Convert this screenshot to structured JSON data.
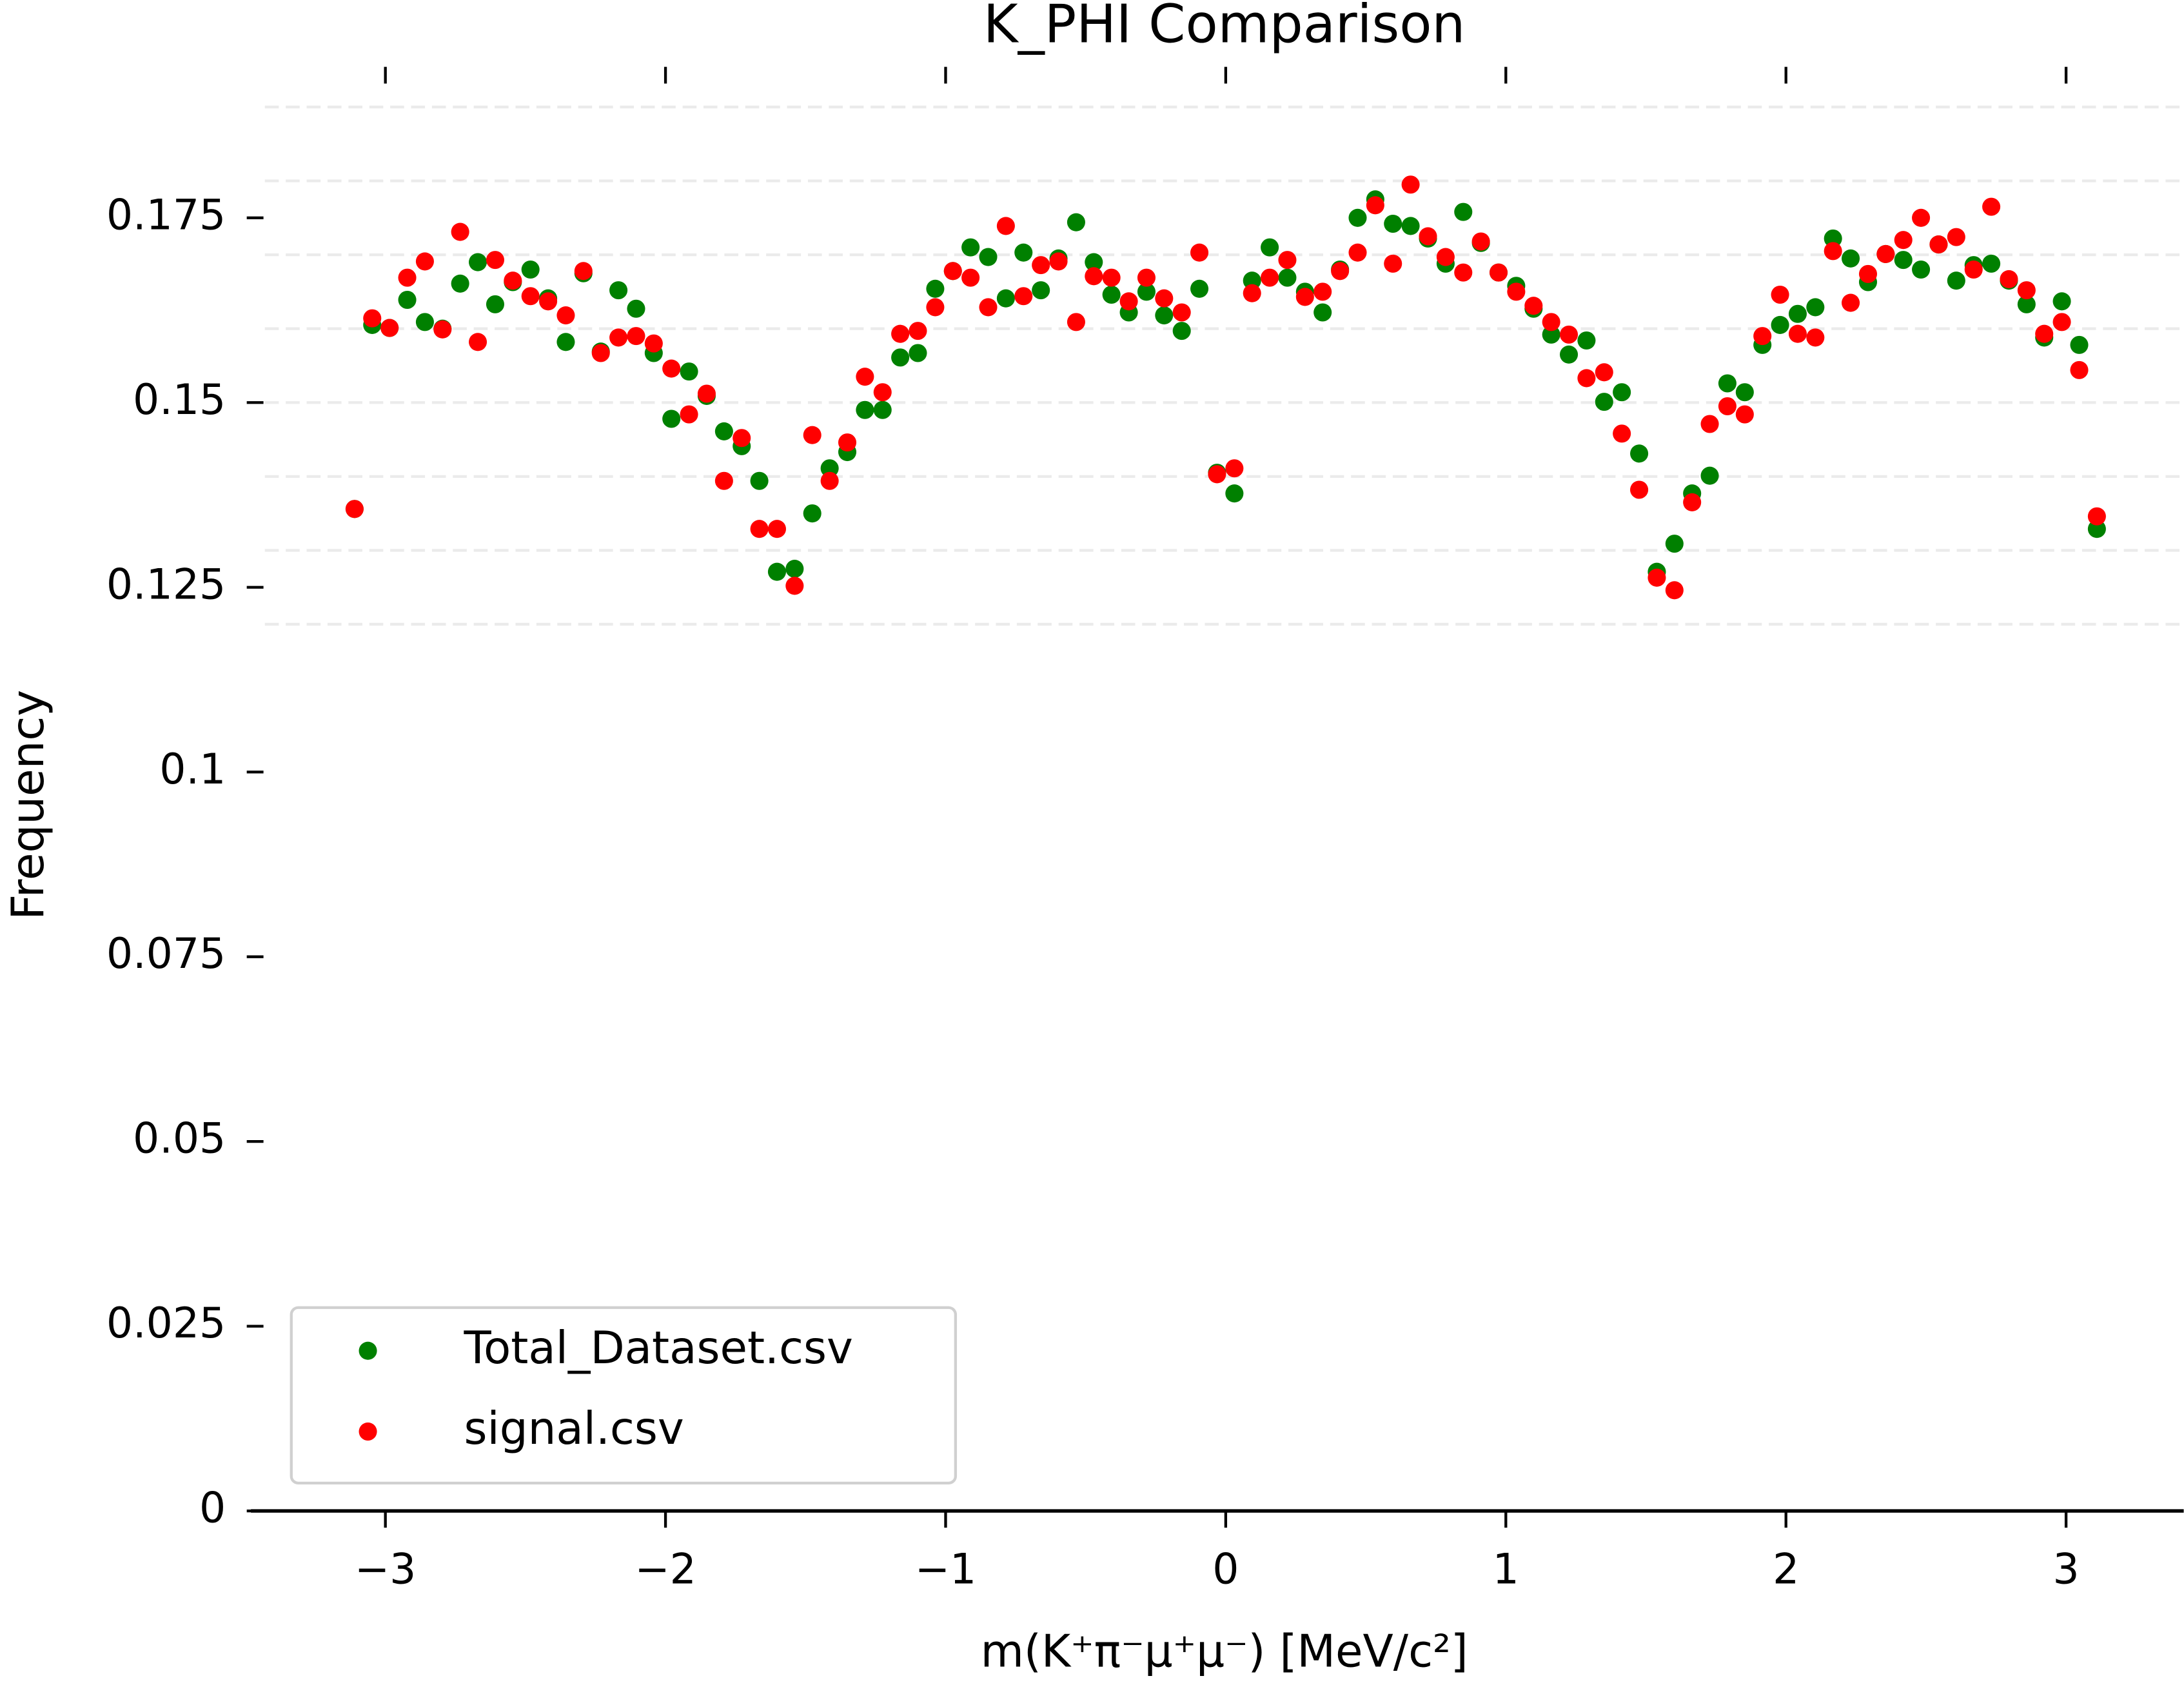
{
  "chart_data": {
    "type": "scatter",
    "title": "K_PHI Comparison",
    "xlabel": "m(K⁺π⁻μ⁺μ⁻) [MeV/c²]",
    "ylabel": "Frequency",
    "xlim": [
      -3.48,
      3.42
    ],
    "ylim": [
      0,
      0.196
    ],
    "xticks": [
      {
        "value": -3,
        "label": "−3"
      },
      {
        "value": -2,
        "label": "−2"
      },
      {
        "value": -1,
        "label": "−1"
      },
      0,
      1,
      2,
      3
    ],
    "yticks": [
      0,
      0.025,
      0.05,
      0.075,
      0.1,
      0.125,
      0.15,
      0.175
    ],
    "ygrid": [
      0.12,
      0.13,
      0.14,
      0.15,
      0.16,
      0.17,
      0.18,
      0.19
    ],
    "legend": "lower left",
    "x": [
      -3.11,
      -3.047,
      -2.985,
      -2.922,
      -2.859,
      -2.796,
      -2.733,
      -2.67,
      -2.608,
      -2.545,
      -2.482,
      -2.419,
      -2.356,
      -2.293,
      -2.231,
      -2.168,
      -2.105,
      -2.042,
      -1.979,
      -1.916,
      -1.853,
      -1.791,
      -1.728,
      -1.665,
      -1.602,
      -1.539,
      -1.476,
      -1.414,
      -1.351,
      -1.288,
      -1.225,
      -1.162,
      -1.099,
      -1.037,
      -0.974,
      -0.911,
      -0.848,
      -0.785,
      -0.722,
      -0.66,
      -0.597,
      -0.534,
      -0.471,
      -0.408,
      -0.346,
      -0.283,
      -0.22,
      -0.157,
      -0.094,
      -0.031,
      0.031,
      0.094,
      0.157,
      0.22,
      0.283,
      0.346,
      0.408,
      0.471,
      0.534,
      0.597,
      0.66,
      0.722,
      0.785,
      0.848,
      0.911,
      0.974,
      1.037,
      1.099,
      1.162,
      1.225,
      1.288,
      1.351,
      1.414,
      1.476,
      1.539,
      1.602,
      1.665,
      1.728,
      1.791,
      1.853,
      1.916,
      1.979,
      2.042,
      2.105,
      2.168,
      2.231,
      2.293,
      2.356,
      2.419,
      2.482,
      2.545,
      2.608,
      2.67,
      2.733,
      2.796,
      2.859,
      2.922,
      2.985,
      3.047,
      3.11
    ],
    "series": [
      {
        "name": "Total_Dataset.csv",
        "color": "#008000",
        "values": [
          0.1356,
          0.1605,
          0.1601,
          0.1639,
          0.1609,
          0.16,
          0.1661,
          0.169,
          0.1633,
          0.1663,
          0.168,
          0.1641,
          0.1582,
          0.1675,
          0.1569,
          0.1652,
          0.1627,
          0.1567,
          0.1478,
          0.1542,
          0.1509,
          0.1461,
          0.1441,
          0.1394,
          0.1271,
          0.1275,
          0.135,
          0.1411,
          0.1433,
          0.149,
          0.149,
          0.1561,
          0.1567,
          0.1654,
          0.1678,
          0.171,
          0.1697,
          0.1641,
          0.1703,
          0.1652,
          0.1695,
          0.1744,
          0.169,
          0.1646,
          0.1622,
          0.165,
          0.1618,
          0.1597,
          0.1654,
          0.1405,
          0.1377,
          0.1665,
          0.171,
          0.1669,
          0.165,
          0.1622,
          0.168,
          0.175,
          0.1775,
          0.1742,
          0.1739,
          0.1722,
          0.1688,
          0.1758,
          0.1716,
          0.1676,
          0.1658,
          0.1627,
          0.1592,
          0.1565,
          0.1584,
          0.1501,
          0.1514,
          0.1431,
          0.1271,
          0.1309,
          0.1377,
          0.1401,
          0.1526,
          0.1514,
          0.1578,
          0.1605,
          0.162,
          0.1629,
          0.1722,
          0.1695,
          0.1663,
          0.1701,
          0.1693,
          0.168,
          0.1714,
          0.1665,
          0.1686,
          0.1688,
          0.1665,
          0.1633,
          0.1588,
          0.1637,
          0.1578,
          0.1329
        ]
      },
      {
        "name": "signal.csv",
        "color": "#ff0000",
        "values": [
          0.1356,
          0.1614,
          0.1601,
          0.1669,
          0.1691,
          0.1599,
          0.1731,
          0.1582,
          0.1693,
          0.1665,
          0.1644,
          0.1637,
          0.1618,
          0.1678,
          0.1567,
          0.1588,
          0.159,
          0.158,
          0.1546,
          0.1484,
          0.1512,
          0.1394,
          0.1452,
          0.1329,
          0.1329,
          0.1252,
          0.1456,
          0.1394,
          0.1446,
          0.1535,
          0.1514,
          0.1593,
          0.1597,
          0.1629,
          0.1678,
          0.1669,
          0.1629,
          0.1739,
          0.1644,
          0.1686,
          0.1691,
          0.1609,
          0.1671,
          0.1669,
          0.1637,
          0.1669,
          0.1641,
          0.1622,
          0.1703,
          0.1403,
          0.1411,
          0.1648,
          0.1669,
          0.1693,
          0.1643,
          0.165,
          0.1678,
          0.1703,
          0.1767,
          0.1688,
          0.1795,
          0.1725,
          0.1697,
          0.1676,
          0.1718,
          0.1676,
          0.165,
          0.1631,
          0.1609,
          0.1592,
          0.1533,
          0.1541,
          0.1458,
          0.1382,
          0.1263,
          0.1246,
          0.1365,
          0.1471,
          0.1495,
          0.1484,
          0.159,
          0.1646,
          0.1593,
          0.1588,
          0.1705,
          0.1635,
          0.1674,
          0.1701,
          0.172,
          0.175,
          0.1714,
          0.1724,
          0.168,
          0.1765,
          0.1667,
          0.1652,
          0.1593,
          0.1609,
          0.1544,
          0.1346
        ]
      }
    ]
  }
}
